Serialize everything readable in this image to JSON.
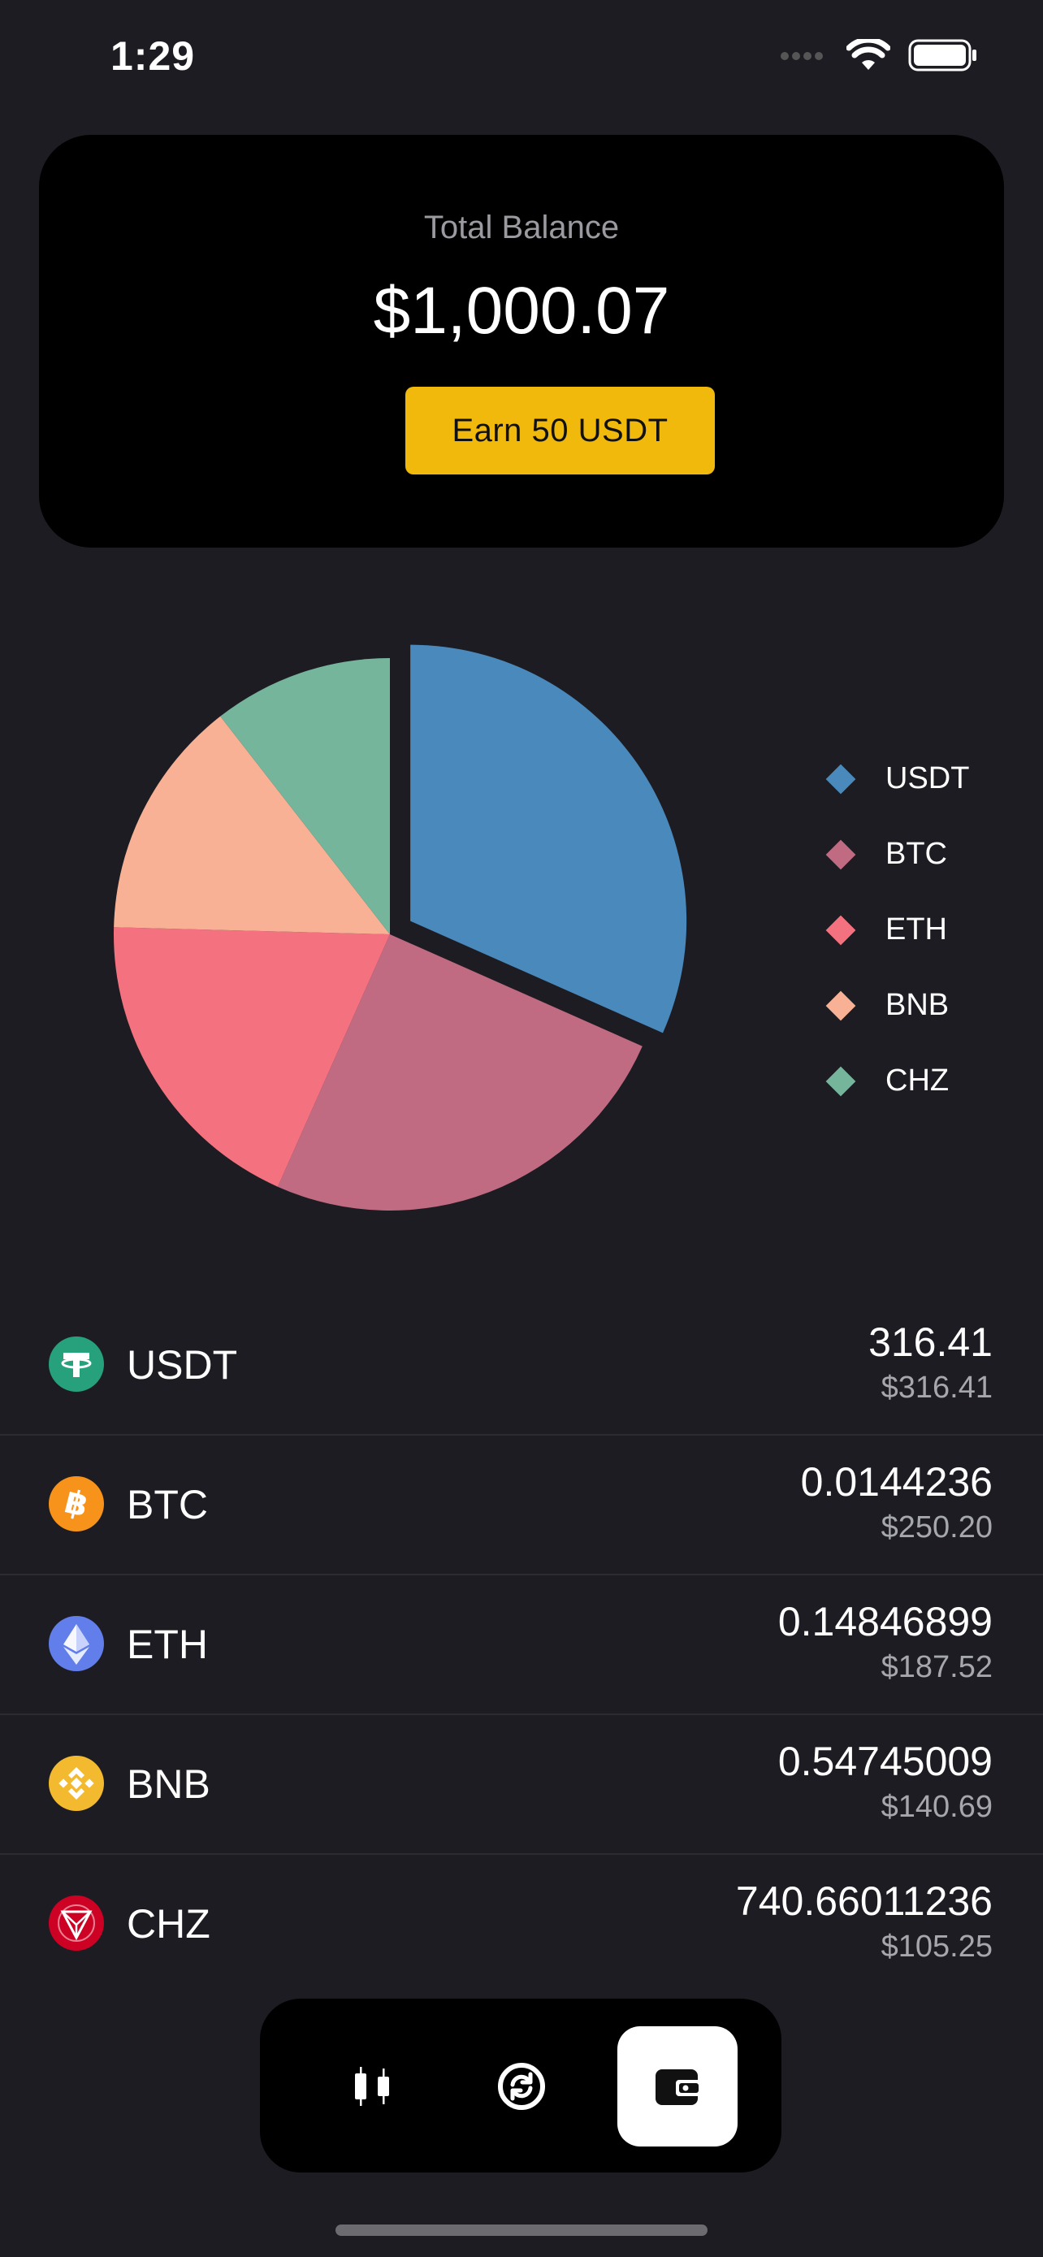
{
  "status": {
    "time": "1:29"
  },
  "balance": {
    "label": "Total Balance",
    "value": "$1,000.07",
    "earn_button": "Earn 50 USDT"
  },
  "colors": {
    "background": "#1c1c22",
    "card": "#000000",
    "accent": "#f0b90b",
    "USDT": "#4a89bb",
    "BTC": "#c06b82",
    "ETH": "#f47280",
    "BNB": "#f8b194",
    "CHZ": "#75b59b"
  },
  "chart_data": {
    "type": "pie",
    "labels": [
      "USDT",
      "BTC",
      "ETH",
      "BNB",
      "CHZ"
    ],
    "values": [
      316.41,
      250.2,
      187.52,
      140.69,
      105.25
    ],
    "colors": [
      "#4a89bb",
      "#c06b82",
      "#f47280",
      "#f8b194",
      "#75b59b"
    ],
    "exploded": "USDT",
    "legend_position": "right"
  },
  "legend": [
    "USDT",
    "BTC",
    "ETH",
    "BNB",
    "CHZ"
  ],
  "assets": [
    {
      "symbol": "USDT",
      "amount": "316.41",
      "usd": "$316.41",
      "icon": "tether-icon",
      "color": "#26a17b"
    },
    {
      "symbol": "BTC",
      "amount": "0.0144236",
      "usd": "$250.20",
      "icon": "bitcoin-icon",
      "color": "#f7931a"
    },
    {
      "symbol": "ETH",
      "amount": "0.14846899",
      "usd": "$187.52",
      "icon": "ethereum-icon",
      "color": "#627eea"
    },
    {
      "symbol": "BNB",
      "amount": "0.54745009",
      "usd": "$140.69",
      "icon": "bnb-icon",
      "color": "#f3ba2f"
    },
    {
      "symbol": "CHZ",
      "amount": "740.66011236",
      "usd": "$105.25",
      "icon": "chiliz-icon",
      "color": "#cd0124"
    }
  ],
  "tabs": [
    {
      "name": "markets",
      "icon": "candlestick-icon",
      "active": false
    },
    {
      "name": "swap",
      "icon": "swap-icon",
      "active": false
    },
    {
      "name": "wallet",
      "icon": "wallet-icon",
      "active": true
    }
  ]
}
